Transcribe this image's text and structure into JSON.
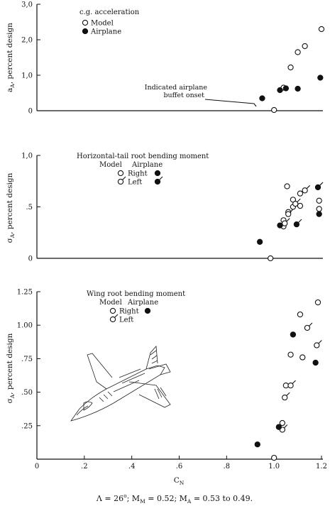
{
  "chart_data": [
    {
      "type": "scatter",
      "title": "c.g. acceleration",
      "ylabel": "a_A, percent design",
      "ylim": [
        0,
        3.0
      ],
      "yticks": [
        {
          "value": 0,
          "label": "0"
        },
        {
          "value": 1.0,
          "label": "1,0"
        },
        {
          "value": 2.0,
          "label": "2,0"
        },
        {
          "value": 3.0,
          "label": "3,0"
        }
      ],
      "legend": [
        {
          "label": "Model",
          "marker": "open"
        },
        {
          "label": "Airplane",
          "marker": "filled"
        }
      ],
      "annotation": {
        "lines": [
          "Indicated airplane",
          "buffet onset"
        ],
        "x": 0.94,
        "y": 0.15
      },
      "series": [
        {
          "name": "Model",
          "marker": "open",
          "points": [
            {
              "x": 1.0,
              "y": 0.02
            },
            {
              "x": 1.04,
              "y": 0.65
            },
            {
              "x": 1.07,
              "y": 1.22
            },
            {
              "x": 1.1,
              "y": 1.65
            },
            {
              "x": 1.13,
              "y": 1.82
            },
            {
              "x": 1.2,
              "y": 2.3
            }
          ]
        },
        {
          "name": "Airplane",
          "marker": "filled",
          "points": [
            {
              "x": 0.95,
              "y": 0.35
            },
            {
              "x": 1.025,
              "y": 0.58
            },
            {
              "x": 1.05,
              "y": 0.63
            },
            {
              "x": 1.1,
              "y": 0.62
            },
            {
              "x": 1.195,
              "y": 0.93
            }
          ]
        }
      ]
    },
    {
      "type": "scatter",
      "title": "Horizontal-tail root bending moment",
      "ylabel": "σ_A, percent design",
      "ylim": [
        0,
        1.0
      ],
      "yticks": [
        {
          "value": 0,
          "label": "0"
        },
        {
          "value": 0.5,
          "label": ".5"
        },
        {
          "value": 1.0,
          "label": "1,0"
        }
      ],
      "legend_headers": [
        "Model",
        "Airplane"
      ],
      "legend": [
        {
          "label": "Right",
          "model_marker": "open",
          "airplane_marker": "filled"
        },
        {
          "label": "Left",
          "model_marker": "open-flag",
          "airplane_marker": "filled-flag"
        }
      ],
      "series": [
        {
          "name": "Model Right",
          "marker": "open",
          "points": [
            {
              "x": 1.055,
              "y": 0.7
            },
            {
              "x": 1.08,
              "y": 0.57
            },
            {
              "x": 1.08,
              "y": 0.5
            },
            {
              "x": 1.06,
              "y": 0.45
            },
            {
              "x": 1.04,
              "y": 0.37
            },
            {
              "x": 1.04,
              "y": 0.31
            },
            {
              "x": 1.11,
              "y": 0.51
            },
            {
              "x": 1.19,
              "y": 0.56
            },
            {
              "x": 1.19,
              "y": 0.48
            },
            {
              "x": 0.985,
              "y": 0.0
            }
          ]
        },
        {
          "name": "Model Left",
          "marker": "open-flag",
          "points": [
            {
              "x": 1.11,
              "y": 0.63
            },
            {
              "x": 1.13,
              "y": 0.66
            },
            {
              "x": 1.09,
              "y": 0.53
            },
            {
              "x": 1.06,
              "y": 0.43
            },
            {
              "x": 1.045,
              "y": 0.34
            }
          ]
        },
        {
          "name": "Airplane Right",
          "marker": "filled",
          "points": [
            {
              "x": 0.94,
              "y": 0.16
            },
            {
              "x": 1.025,
              "y": 0.32
            },
            {
              "x": 1.19,
              "y": 0.43
            }
          ]
        },
        {
          "name": "Airplane Left",
          "marker": "filled-flag",
          "points": [
            {
              "x": 1.095,
              "y": 0.33
            },
            {
              "x": 1.185,
              "y": 0.69
            }
          ]
        }
      ]
    },
    {
      "type": "scatter",
      "title": "Wing root bending moment",
      "ylabel": "σ_A, percent design",
      "xlabel": "C_N",
      "xlim": [
        0,
        1.2
      ],
      "ylim": [
        0,
        1.25
      ],
      "xticks": [
        {
          "value": 0,
          "label": "0"
        },
        {
          "value": 0.2,
          "label": ".2"
        },
        {
          "value": 0.4,
          "label": ".4"
        },
        {
          "value": 0.6,
          "label": ".6"
        },
        {
          "value": 0.8,
          "label": ".8"
        },
        {
          "value": 1.0,
          "label": "1.0"
        },
        {
          "value": 1.2,
          "label": "1.2"
        }
      ],
      "yticks": [
        {
          "value": 0.25,
          "label": ".25"
        },
        {
          "value": 0.5,
          "label": ".50"
        },
        {
          "value": 0.75,
          "label": ".75"
        },
        {
          "value": 1.0,
          "label": "1.00"
        },
        {
          "value": 1.25,
          "label": "1.25"
        }
      ],
      "legend_headers": [
        "Model",
        "Airplane"
      ],
      "legend": [
        {
          "label": "Right",
          "model_marker": "open",
          "airplane_marker": "filled"
        },
        {
          "label": "Left",
          "model_marker": "open-flag"
        }
      ],
      "series": [
        {
          "name": "Model Right",
          "marker": "open",
          "points": [
            {
              "x": 1.0,
              "y": 0.01
            },
            {
              "x": 1.035,
              "y": 0.27
            },
            {
              "x": 1.05,
              "y": 0.55
            },
            {
              "x": 1.07,
              "y": 0.78
            },
            {
              "x": 1.11,
              "y": 1.08
            },
            {
              "x": 1.185,
              "y": 1.17
            },
            {
              "x": 1.12,
              "y": 0.76
            }
          ]
        },
        {
          "name": "Model Left",
          "marker": "open-flag",
          "points": [
            {
              "x": 1.035,
              "y": 0.22
            },
            {
              "x": 1.045,
              "y": 0.46
            },
            {
              "x": 1.07,
              "y": 0.55
            },
            {
              "x": 1.14,
              "y": 0.98
            },
            {
              "x": 1.18,
              "y": 0.85
            }
          ]
        },
        {
          "name": "Airplane Right",
          "marker": "filled",
          "points": [
            {
              "x": 0.93,
              "y": 0.11
            },
            {
              "x": 1.02,
              "y": 0.24
            },
            {
              "x": 1.08,
              "y": 0.93
            },
            {
              "x": 1.175,
              "y": 0.72
            }
          ]
        }
      ]
    }
  ],
  "footer": "Λ = 26°;   M_M = 0.52;   M_A = 0.53 to 0.49."
}
